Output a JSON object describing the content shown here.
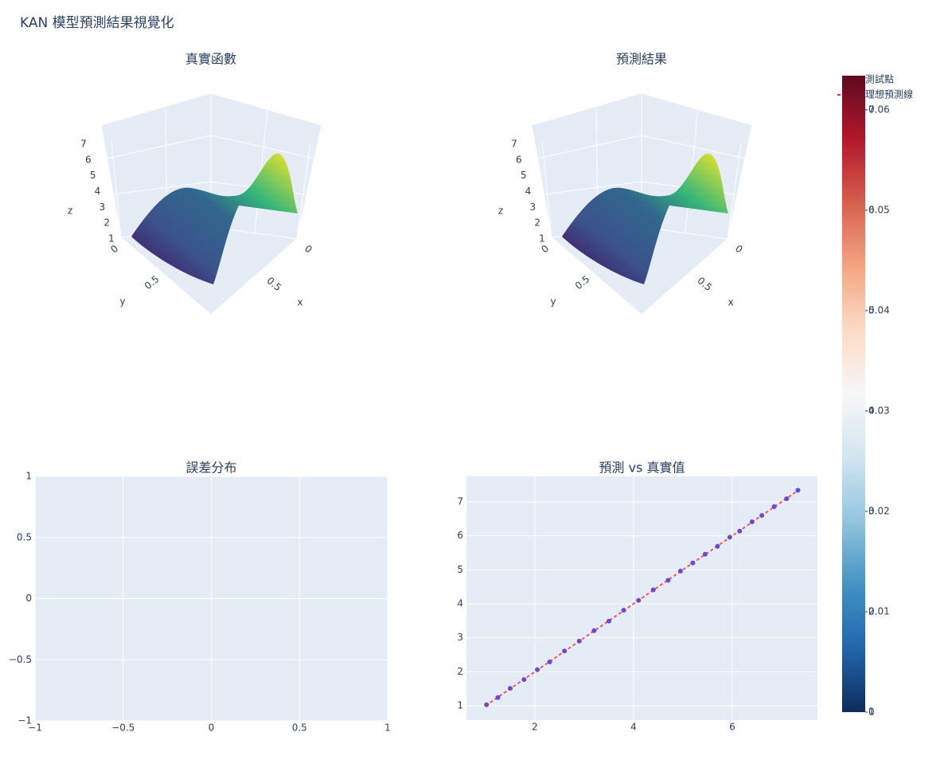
{
  "title": "KAN 模型預測結果視覺化",
  "chart_data": [
    {
      "type": "surface3d",
      "title": "真實函數",
      "xlabel": "x",
      "ylabel": "y",
      "zlabel": "z",
      "xticks": [
        0,
        0.5
      ],
      "yticks": [
        0,
        0.5
      ],
      "zticks": [
        1,
        2,
        3,
        4,
        5,
        6,
        7
      ]
    },
    {
      "type": "surface3d",
      "title": "預測結果",
      "xlabel": "x",
      "ylabel": "y",
      "zlabel": "z",
      "xticks": [
        0,
        0.5
      ],
      "yticks": [
        0,
        0.5
      ],
      "zticks": [
        1,
        2,
        3,
        4,
        5,
        6,
        7
      ]
    },
    {
      "type": "scatter",
      "title": "誤差分布",
      "grid": true,
      "xlim": [
        -1,
        1
      ],
      "ylim": [
        -1,
        1
      ],
      "xticks": [
        {
          "value": -1,
          "label": "−1"
        },
        {
          "value": -0.5,
          "label": "−0.5"
        },
        0,
        0.5,
        1
      ],
      "yticks": [
        {
          "value": -1,
          "label": "−1"
        },
        {
          "value": -0.5,
          "label": "−0.5"
        },
        0,
        0.5,
        1
      ]
    },
    {
      "type": "scatter",
      "title": "預測 vs 真實值",
      "grid": true,
      "xlim": [
        0.613,
        7.726
      ],
      "ylim": [
        0.578,
        7.75
      ],
      "xticks": [
        2,
        4,
        6
      ],
      "yticks": [
        1,
        2,
        3,
        4,
        5,
        6,
        7
      ],
      "series": [
        {
          "name": "測試點",
          "color": "#2a2af0",
          "mode": "markers",
          "x": [
            1.02,
            1.25,
            1.5,
            1.78,
            2.05,
            2.3,
            2.6,
            2.9,
            3.2,
            3.5,
            3.8,
            4.1,
            4.4,
            4.7,
            4.95,
            5.2,
            5.45,
            5.7,
            5.95,
            6.15,
            6.4,
            6.6,
            6.85,
            7.1,
            7.33
          ],
          "values": [
            1.03,
            1.24,
            1.51,
            1.77,
            2.06,
            2.29,
            2.61,
            2.9,
            3.21,
            3.49,
            3.81,
            4.1,
            4.41,
            4.69,
            4.96,
            5.2,
            5.46,
            5.69,
            5.96,
            6.14,
            6.41,
            6.6,
            6.86,
            7.09,
            7.34
          ]
        },
        {
          "name": "理想預測線",
          "color": "#e8283c",
          "mode": "lines",
          "dash": "4,3",
          "x": [
            1.0,
            7.35
          ],
          "values": [
            1.0,
            7.35
          ]
        }
      ]
    }
  ],
  "colorbars": [
    {
      "ylim": [
        0,
        0.0634
      ],
      "yticks": [
        0,
        0.01,
        0.02,
        0.03,
        0.04,
        0.05,
        0.06
      ],
      "colorscale": [
        "#0d2b5c",
        "#2166ac",
        "#4393c3",
        "#92c5de",
        "#d1e5f0",
        "#f7f7f7",
        "#fddbc7",
        "#f4a582",
        "#d6604d",
        "#b2182b",
        "#5e0a1f"
      ]
    },
    {
      "ylim": [
        1,
        7.34
      ],
      "yticks": [
        1,
        2,
        3,
        4,
        5,
        6,
        7
      ]
    }
  ]
}
